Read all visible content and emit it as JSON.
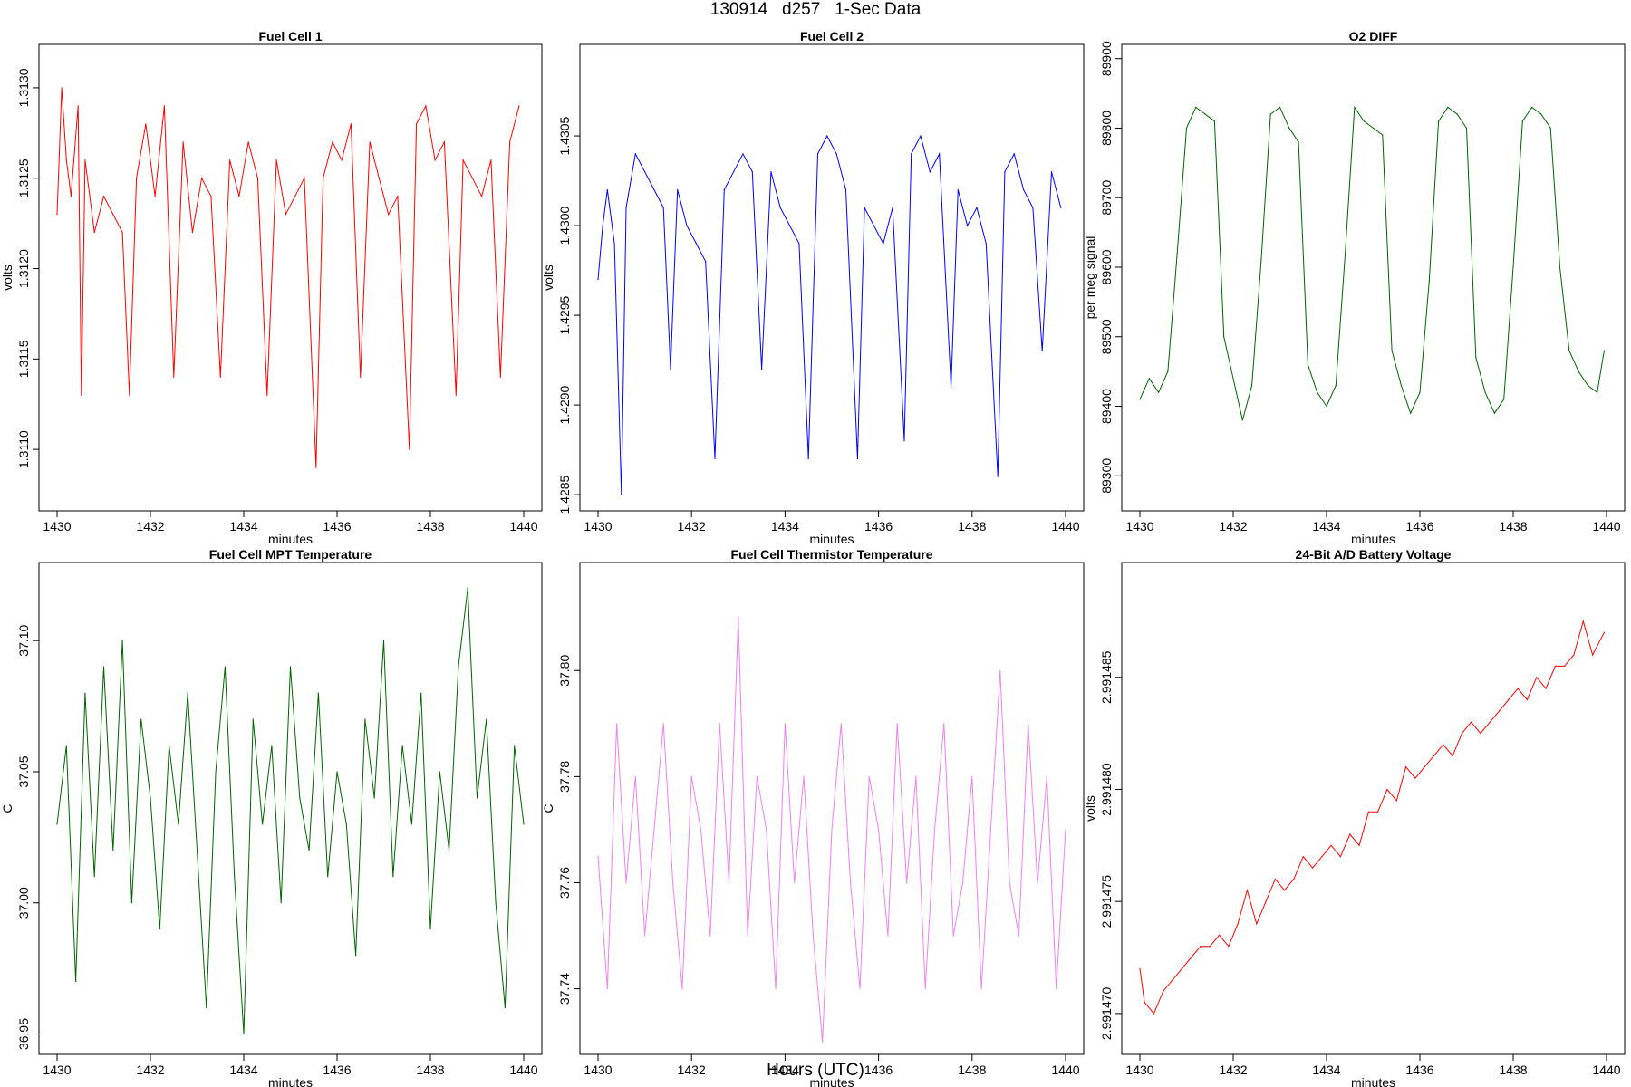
{
  "header": {
    "title": "130914   d257   1-Sec Data",
    "bottom_label": "Hours (UTC)"
  },
  "chart_data": [
    {
      "type": "line",
      "title": "Fuel Cell 1",
      "xlabel": "minutes",
      "ylabel": "volts",
      "color": "#ff0000",
      "xlim": [
        1430,
        1440
      ],
      "ylim": [
        1.3107,
        1.3132
      ],
      "xticks": [
        "1430",
        "1432",
        "1434",
        "1436",
        "1438",
        "1440"
      ],
      "yticks": [
        "1.3110",
        "1.3115",
        "1.3120",
        "1.3125",
        "1.3130"
      ],
      "series": [
        {
          "x": [
            1430.0,
            1430.1,
            1430.2,
            1430.3,
            1430.45,
            1430.52,
            1430.6,
            1430.8,
            1431.0,
            1431.2,
            1431.4,
            1431.55,
            1431.7,
            1431.9,
            1432.1,
            1432.3,
            1432.5,
            1432.7,
            1432.9,
            1433.1,
            1433.3,
            1433.5,
            1433.7,
            1433.9,
            1434.1,
            1434.3,
            1434.5,
            1434.7,
            1434.9,
            1435.1,
            1435.3,
            1435.55,
            1435.7,
            1435.9,
            1436.1,
            1436.3,
            1436.5,
            1436.7,
            1436.9,
            1437.1,
            1437.3,
            1437.55,
            1437.7,
            1437.9,
            1438.1,
            1438.3,
            1438.55,
            1438.7,
            1438.9,
            1439.1,
            1439.3,
            1439.5,
            1439.7,
            1439.9
          ],
          "y": [
            1.3123,
            1.313,
            1.3126,
            1.3124,
            1.3129,
            1.3113,
            1.3126,
            1.3122,
            1.3124,
            1.3123,
            1.3122,
            1.3113,
            1.3125,
            1.3128,
            1.3124,
            1.3129,
            1.3114,
            1.3127,
            1.3122,
            1.3125,
            1.3124,
            1.3114,
            1.3126,
            1.3124,
            1.3127,
            1.3125,
            1.3113,
            1.3126,
            1.3123,
            1.3124,
            1.3125,
            1.3109,
            1.3125,
            1.3127,
            1.3126,
            1.3128,
            1.3114,
            1.3127,
            1.3125,
            1.3123,
            1.3124,
            1.311,
            1.3128,
            1.3129,
            1.3126,
            1.3127,
            1.3113,
            1.3126,
            1.3125,
            1.3124,
            1.3126,
            1.3114,
            1.3127,
            1.3129
          ]
        }
      ]
    },
    {
      "type": "line",
      "title": "Fuel Cell 2",
      "xlabel": "minutes",
      "ylabel": "volts",
      "color": "#0000ff",
      "xlim": [
        1430,
        1440
      ],
      "ylim": [
        1.42845,
        1.43097
      ],
      "xticks": [
        "1430",
        "1432",
        "1434",
        "1436",
        "1438",
        "1440"
      ],
      "yticks": [
        "1.4285",
        "1.4290",
        "1.4295",
        "1.4300",
        "1.4305"
      ],
      "series": [
        {
          "x": [
            1430.0,
            1430.1,
            1430.2,
            1430.35,
            1430.5,
            1430.6,
            1430.8,
            1431.0,
            1431.2,
            1431.4,
            1431.55,
            1431.7,
            1431.9,
            1432.1,
            1432.3,
            1432.5,
            1432.7,
            1432.9,
            1433.1,
            1433.3,
            1433.5,
            1433.7,
            1433.9,
            1434.1,
            1434.3,
            1434.5,
            1434.7,
            1434.9,
            1435.1,
            1435.3,
            1435.55,
            1435.7,
            1435.9,
            1436.1,
            1436.3,
            1436.55,
            1436.7,
            1436.9,
            1437.1,
            1437.3,
            1437.55,
            1437.7,
            1437.9,
            1438.1,
            1438.3,
            1438.55,
            1438.7,
            1438.9,
            1439.1,
            1439.3,
            1439.5,
            1439.7,
            1439.9
          ],
          "y": [
            1.4297,
            1.43,
            1.4302,
            1.4299,
            1.4285,
            1.4301,
            1.4304,
            1.4303,
            1.4302,
            1.4301,
            1.4292,
            1.4302,
            1.43,
            1.4299,
            1.4298,
            1.4287,
            1.4302,
            1.4303,
            1.4304,
            1.4303,
            1.4292,
            1.4303,
            1.4301,
            1.43,
            1.4299,
            1.4287,
            1.4304,
            1.4305,
            1.4304,
            1.4302,
            1.4287,
            1.4301,
            1.43,
            1.4299,
            1.4301,
            1.4288,
            1.4304,
            1.4305,
            1.4303,
            1.4304,
            1.4291,
            1.4302,
            1.43,
            1.4301,
            1.4299,
            1.4286,
            1.4303,
            1.4304,
            1.4302,
            1.4301,
            1.4293,
            1.4303,
            1.4301
          ]
        }
      ]
    },
    {
      "type": "line",
      "title": "O2 DIFF",
      "xlabel": "minutes",
      "ylabel": "per meg signal",
      "color": "#006400",
      "xlim": [
        1430,
        1440
      ],
      "ylim": [
        89260,
        89910
      ],
      "xticks": [
        "1430",
        "1432",
        "1434",
        "1436",
        "1438",
        "1440"
      ],
      "yticks": [
        "89300",
        "89400",
        "89500",
        "89600",
        "89700",
        "89800",
        "89900"
      ],
      "series": [
        {
          "x": [
            1430.0,
            1430.2,
            1430.4,
            1430.6,
            1430.8,
            1431.0,
            1431.2,
            1431.4,
            1431.6,
            1431.8,
            1432.0,
            1432.2,
            1432.4,
            1432.6,
            1432.8,
            1433.0,
            1433.2,
            1433.4,
            1433.6,
            1433.8,
            1434.0,
            1434.2,
            1434.4,
            1434.6,
            1434.8,
            1435.0,
            1435.2,
            1435.4,
            1435.6,
            1435.8,
            1436.0,
            1436.2,
            1436.4,
            1436.6,
            1436.8,
            1437.0,
            1437.2,
            1437.4,
            1437.6,
            1437.8,
            1438.0,
            1438.2,
            1438.4,
            1438.6,
            1438.8,
            1439.0,
            1439.2,
            1439.4,
            1439.6,
            1439.8,
            1439.95
          ],
          "y": [
            89410,
            89440,
            89420,
            89450,
            89620,
            89800,
            89830,
            89820,
            89810,
            89500,
            89440,
            89380,
            89430,
            89610,
            89820,
            89830,
            89800,
            89780,
            89460,
            89420,
            89400,
            89430,
            89620,
            89830,
            89810,
            89800,
            89790,
            89480,
            89430,
            89390,
            89420,
            89580,
            89810,
            89830,
            89820,
            89800,
            89470,
            89420,
            89390,
            89410,
            89600,
            89810,
            89830,
            89820,
            89800,
            89600,
            89480,
            89450,
            89430,
            89420,
            89480
          ]
        }
      ]
    },
    {
      "type": "line",
      "title": "Fuel Cell MPT Temperature",
      "xlabel": "minutes",
      "ylabel": "C",
      "color": "#006400",
      "xlim": [
        1430,
        1440
      ],
      "ylim": [
        36.945,
        37.127
      ],
      "xticks": [
        "1430",
        "1432",
        "1434",
        "1436",
        "1438",
        "1440"
      ],
      "yticks": [
        "36.95",
        "37.00",
        "37.05",
        "37.10"
      ],
      "series": [
        {
          "x": [
            1430.0,
            1430.2,
            1430.4,
            1430.6,
            1430.8,
            1431.0,
            1431.2,
            1431.4,
            1431.6,
            1431.8,
            1432.0,
            1432.2,
            1432.4,
            1432.6,
            1432.8,
            1433.0,
            1433.2,
            1433.4,
            1433.6,
            1433.8,
            1434.0,
            1434.2,
            1434.4,
            1434.6,
            1434.8,
            1435.0,
            1435.2,
            1435.4,
            1435.6,
            1435.8,
            1436.0,
            1436.2,
            1436.4,
            1436.6,
            1436.8,
            1437.0,
            1437.2,
            1437.4,
            1437.6,
            1437.8,
            1438.0,
            1438.2,
            1438.4,
            1438.6,
            1438.8,
            1439.0,
            1439.2,
            1439.4,
            1439.6,
            1439.8,
            1440.0
          ],
          "y": [
            37.03,
            37.06,
            36.97,
            37.08,
            37.01,
            37.09,
            37.02,
            37.1,
            37.0,
            37.07,
            37.04,
            36.99,
            37.06,
            37.03,
            37.08,
            37.02,
            36.96,
            37.05,
            37.09,
            37.01,
            36.95,
            37.07,
            37.03,
            37.06,
            37.0,
            37.09,
            37.04,
            37.02,
            37.08,
            37.01,
            37.05,
            37.03,
            36.98,
            37.07,
            37.04,
            37.1,
            37.01,
            37.06,
            37.03,
            37.08,
            36.99,
            37.05,
            37.02,
            37.09,
            37.12,
            37.04,
            37.07,
            37.0,
            36.96,
            37.06,
            37.03
          ]
        }
      ]
    },
    {
      "type": "line",
      "title": "Fuel Cell Thermistor Temperature",
      "xlabel": "minutes",
      "ylabel": "C",
      "color": "#ee82ee",
      "xlim": [
        1430,
        1440
      ],
      "ylim": [
        37.729,
        37.819
      ],
      "xticks": [
        "1430",
        "1432",
        "1434",
        "1436",
        "1438",
        "1440"
      ],
      "yticks": [
        "37.74",
        "37.76",
        "37.78",
        "37.80"
      ],
      "series": [
        {
          "x": [
            1430.0,
            1430.2,
            1430.4,
            1430.6,
            1430.8,
            1431.0,
            1431.2,
            1431.4,
            1431.6,
            1431.8,
            1432.0,
            1432.2,
            1432.4,
            1432.6,
            1432.8,
            1433.0,
            1433.2,
            1433.4,
            1433.6,
            1433.8,
            1434.0,
            1434.2,
            1434.4,
            1434.6,
            1434.8,
            1435.0,
            1435.2,
            1435.4,
            1435.6,
            1435.8,
            1436.0,
            1436.2,
            1436.4,
            1436.6,
            1436.8,
            1437.0,
            1437.2,
            1437.4,
            1437.6,
            1437.8,
            1438.0,
            1438.2,
            1438.4,
            1438.6,
            1438.8,
            1439.0,
            1439.2,
            1439.4,
            1439.6,
            1439.8,
            1440.0
          ],
          "y": [
            37.765,
            37.74,
            37.79,
            37.76,
            37.78,
            37.75,
            37.77,
            37.79,
            37.76,
            37.74,
            37.78,
            37.77,
            37.75,
            37.79,
            37.76,
            37.81,
            37.75,
            37.78,
            37.77,
            37.74,
            37.79,
            37.76,
            37.78,
            37.75,
            37.73,
            37.77,
            37.79,
            37.76,
            37.74,
            37.78,
            37.77,
            37.75,
            37.79,
            37.76,
            37.78,
            37.74,
            37.77,
            37.79,
            37.75,
            37.76,
            37.78,
            37.74,
            37.77,
            37.8,
            37.76,
            37.75,
            37.79,
            37.76,
            37.78,
            37.74,
            37.77
          ]
        }
      ]
    },
    {
      "type": "line",
      "title": "24-Bit A/D Battery Voltage",
      "xlabel": "minutes",
      "ylabel": "volts",
      "color": "#ff0000",
      "xlim": [
        1430,
        1440
      ],
      "ylim": [
        2.9914685,
        2.9914898
      ],
      "xticks": [
        "1430",
        "1432",
        "1434",
        "1436",
        "1438",
        "1440"
      ],
      "yticks": [
        "2.991470",
        "2.991475",
        "2.991480",
        "2.991485"
      ],
      "series": [
        {
          "x": [
            1430.0,
            1430.1,
            1430.3,
            1430.5,
            1430.7,
            1430.9,
            1431.1,
            1431.3,
            1431.5,
            1431.7,
            1431.9,
            1432.1,
            1432.3,
            1432.5,
            1432.7,
            1432.9,
            1433.1,
            1433.3,
            1433.5,
            1433.7,
            1433.9,
            1434.1,
            1434.3,
            1434.5,
            1434.7,
            1434.9,
            1435.1,
            1435.3,
            1435.5,
            1435.7,
            1435.9,
            1436.1,
            1436.3,
            1436.5,
            1436.7,
            1436.9,
            1437.1,
            1437.3,
            1437.5,
            1437.7,
            1437.9,
            1438.1,
            1438.3,
            1438.5,
            1438.7,
            1438.9,
            1439.1,
            1439.3,
            1439.5,
            1439.7,
            1439.95
          ],
          "y": [
            2.991472,
            2.9914705,
            2.99147,
            2.991471,
            2.9914715,
            2.991472,
            2.9914725,
            2.991473,
            2.991473,
            2.9914735,
            2.991473,
            2.991474,
            2.9914755,
            2.991474,
            2.991475,
            2.991476,
            2.9914755,
            2.991476,
            2.991477,
            2.9914765,
            2.991477,
            2.9914775,
            2.991477,
            2.991478,
            2.9914775,
            2.991479,
            2.991479,
            2.99148,
            2.9914795,
            2.991481,
            2.9914805,
            2.991481,
            2.9914815,
            2.991482,
            2.9914815,
            2.9914825,
            2.991483,
            2.9914825,
            2.991483,
            2.9914835,
            2.991484,
            2.9914845,
            2.991484,
            2.991485,
            2.9914845,
            2.9914855,
            2.9914855,
            2.991486,
            2.9914875,
            2.991486,
            2.991487
          ]
        }
      ]
    }
  ]
}
